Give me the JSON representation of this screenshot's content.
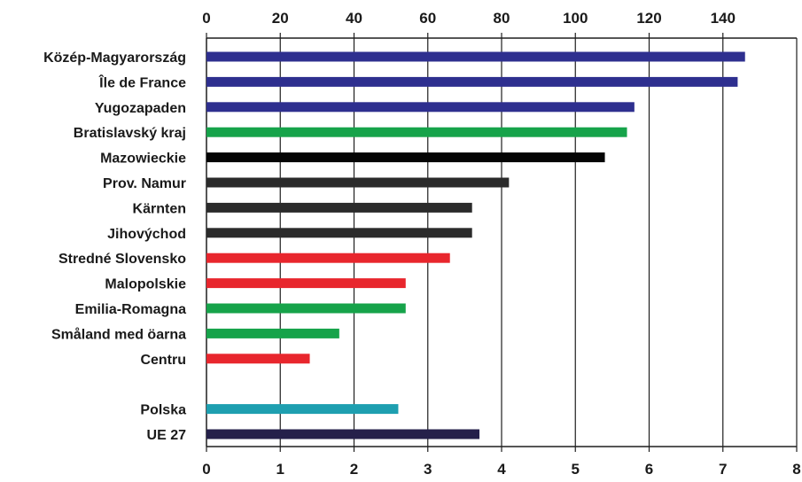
{
  "chart_data": {
    "type": "bar",
    "orientation": "horizontal",
    "categories": [
      "Közép-Magyarország",
      "Île de France",
      "Yugozapaden",
      "Bratislavský kraj",
      "Mazowieckie",
      "Prov. Namur",
      "Kärnten",
      "Jihovýchod",
      "Stredné Slovensko",
      "Malopolskie",
      "Emilia-Romagna",
      "Småland med öarna",
      "Centru",
      "",
      "Polska",
      "UE 27"
    ],
    "values": [
      7.3,
      7.2,
      5.8,
      5.7,
      5.4,
      4.1,
      3.6,
      3.6,
      3.3,
      2.7,
      2.7,
      1.8,
      1.4,
      null,
      2.6,
      3.7
    ],
    "colors": [
      "#2e2f8f",
      "#2e2f8f",
      "#2e2f8f",
      "#16a34a",
      "#050505",
      "#2b2b2b",
      "#2b2b2b",
      "#2b2b2b",
      "#e8262d",
      "#e8262d",
      "#16a34a",
      "#16a34a",
      "#e8262d",
      "#ffffff",
      "#1e9fb0",
      "#25204a"
    ],
    "x_bottom": {
      "ticks": [
        "0",
        "1",
        "2",
        "3",
        "4",
        "5",
        "6",
        "7",
        "8"
      ],
      "lim": [
        0,
        8
      ]
    },
    "x_top": {
      "ticks": [
        "0",
        "20",
        "40",
        "60",
        "80",
        "100",
        "120",
        "140"
      ],
      "lim": [
        0,
        160
      ]
    },
    "grid": true,
    "title": "",
    "xlabel": "",
    "ylabel": ""
  }
}
